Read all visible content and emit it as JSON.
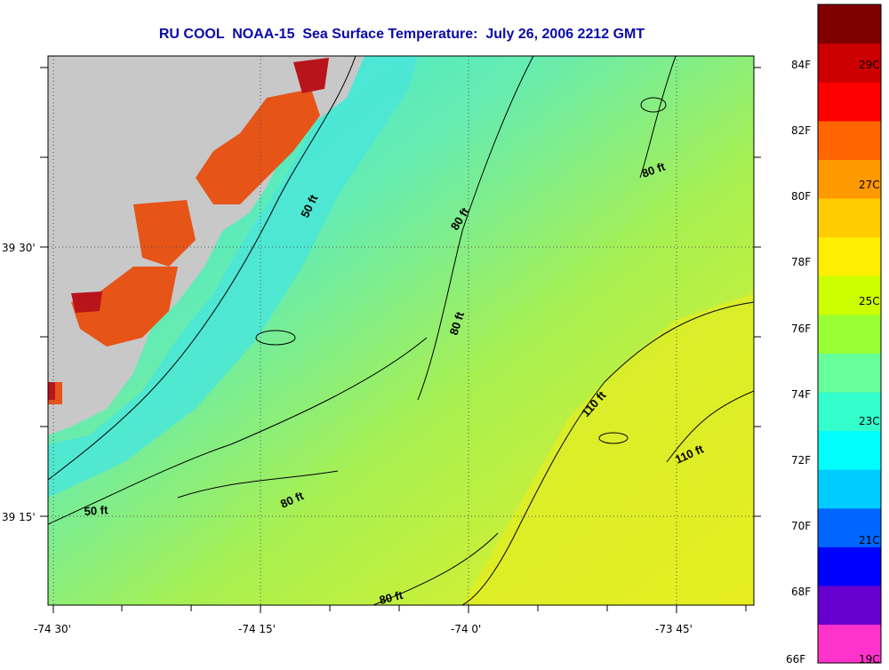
{
  "title": "RU COOL  NOAA-15  Sea Surface Temperature:  July 26, 2006 2212 GMT",
  "axes": {
    "x_ticks": [
      "-74 30'",
      "-74 15'",
      "-74 0'",
      "-73 45'"
    ],
    "y_ticks": [
      "39 30'",
      "39 15'"
    ]
  },
  "contour_labels": [
    {
      "text": "50 ft"
    },
    {
      "text": "80 ft"
    },
    {
      "text": "80 ft"
    },
    {
      "text": "80 ft"
    },
    {
      "text": "50 ft"
    },
    {
      "text": "80 ft"
    },
    {
      "text": "110 ft"
    },
    {
      "text": "110 ft"
    },
    {
      "text": "80 ft"
    }
  ],
  "colorbar": {
    "fahrenheit_labels": [
      "84F",
      "82F",
      "80F",
      "78F",
      "76F",
      "74F",
      "72F",
      "70F",
      "68F",
      "66F"
    ],
    "celsius_labels": [
      "29C",
      "27C",
      "25C",
      "23C",
      "21C",
      "19C"
    ],
    "colors": [
      "#ff33cc",
      "#6600cc",
      "#0000ff",
      "#0066ff",
      "#00ccff",
      "#00ffff",
      "#33ffcc",
      "#66ff99",
      "#99ff33",
      "#ccff00",
      "#ffee00",
      "#ffcc00",
      "#ff9900",
      "#ff6600",
      "#ff0000",
      "#cc0000",
      "#800000"
    ]
  },
  "legend_colors": {
    "land": "#c8c8c8",
    "nearshore_warm": "#e85a1a",
    "coastal_cool": "#33e0e6",
    "midshelf": "#88ee66",
    "offshore_warm": "#e6f020"
  }
}
